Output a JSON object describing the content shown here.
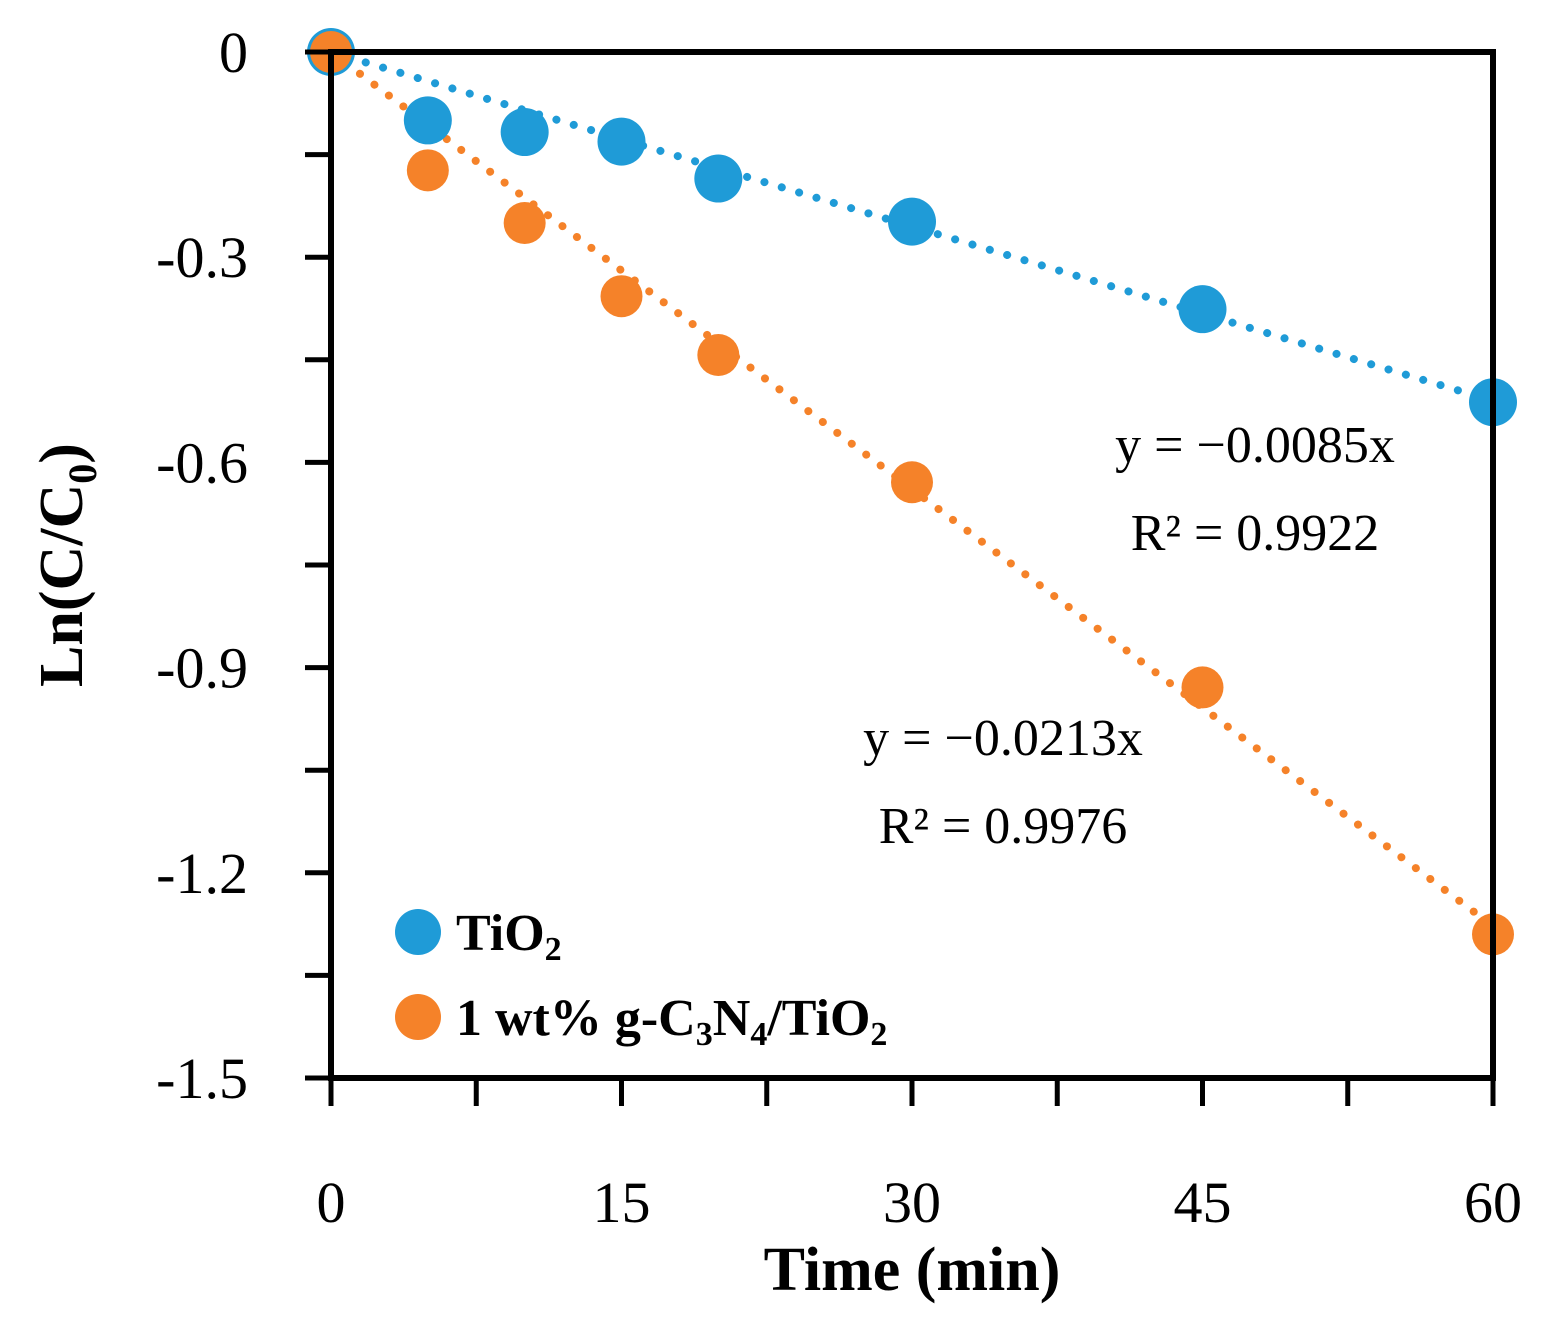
{
  "chart_data": {
    "type": "scatter",
    "title": "",
    "xlabel": "Time (min)",
    "ylabel": {
      "main": "Ln(C/C",
      "sub": "0",
      "close": ")"
    },
    "xlim": [
      0,
      60
    ],
    "ylim": [
      -1.5,
      0
    ],
    "x_ticks": [
      0,
      15,
      30,
      45,
      60
    ],
    "x_tick_labels": [
      "0",
      "15",
      "30",
      "45",
      "60"
    ],
    "x_minor_ticks": [
      7.5,
      22.5,
      37.5,
      52.5
    ],
    "y_ticks": [
      0,
      -0.3,
      -0.6,
      -0.9,
      -1.2,
      -1.5
    ],
    "y_tick_labels": [
      "0",
      "-0.3",
      "-0.6",
      "-0.9",
      "-1.2",
      "-1.5"
    ],
    "y_minor_ticks": [
      -0.15,
      -0.45,
      -0.75,
      -1.05,
      -1.35
    ],
    "grid": false,
    "legend_position": "bottom-left",
    "series": [
      {
        "name": "TiO2",
        "legend": {
          "main": "TiO",
          "sub": "2",
          "rest": ""
        },
        "color": "#1F9BD7",
        "x": [
          0,
          5,
          10,
          15,
          20,
          30,
          45,
          60
        ],
        "y": [
          0,
          -0.1,
          -0.117,
          -0.131,
          -0.185,
          -0.248,
          -0.376,
          -0.512
        ],
        "trendline": {
          "slope": -0.0085,
          "equation": "y = −0.0085x",
          "r2": "R² = 0.9922"
        }
      },
      {
        "name": "1 wt% g-C3N4/TiO2",
        "legend": {
          "parts": [
            {
              "t": "1 wt% g-C",
              "sub": false
            },
            {
              "t": "3",
              "sub": true
            },
            {
              "t": "N",
              "sub": false
            },
            {
              "t": "4",
              "sub": true
            },
            {
              "t": "/TiO",
              "sub": false
            },
            {
              "t": "2",
              "sub": true
            }
          ]
        },
        "color": "#F58229",
        "x": [
          0,
          5,
          10,
          15,
          20,
          30,
          45,
          60
        ],
        "y": [
          0,
          -0.173,
          -0.25,
          -0.357,
          -0.443,
          -0.629,
          -0.929,
          -1.29
        ],
        "trendline": {
          "slope": -0.0213,
          "equation": "y = −0.0213x",
          "r2": "R² = 0.9976"
        }
      }
    ]
  }
}
